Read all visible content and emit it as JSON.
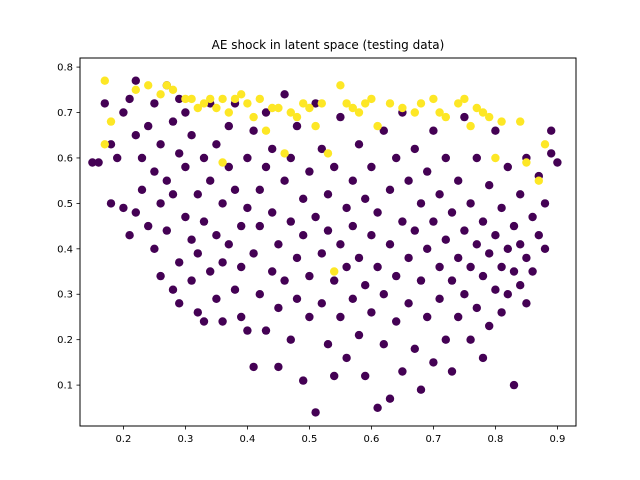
{
  "chart_data": {
    "type": "scatter",
    "title": "AE shock in latent space (testing data)",
    "xlabel": "",
    "ylabel": "",
    "xlim": [
      0.13,
      0.93
    ],
    "ylim": [
      0.01,
      0.82
    ],
    "xticks": [
      0.2,
      0.3,
      0.4,
      0.5,
      0.6,
      0.7,
      0.8,
      0.9
    ],
    "yticks": [
      0.1,
      0.2,
      0.3,
      0.4,
      0.5,
      0.6,
      0.7,
      0.8
    ],
    "grid": false,
    "legend": "none",
    "colors": {
      "class_0": "#440154",
      "class_1": "#fde725",
      "axes": "#000000"
    },
    "series": [
      {
        "class": 0,
        "points": [
          [
            0.15,
            0.59
          ],
          [
            0.16,
            0.59
          ],
          [
            0.17,
            0.72
          ],
          [
            0.18,
            0.63
          ],
          [
            0.18,
            0.5
          ],
          [
            0.19,
            0.6
          ],
          [
            0.2,
            0.49
          ],
          [
            0.2,
            0.7
          ],
          [
            0.21,
            0.73
          ],
          [
            0.21,
            0.43
          ],
          [
            0.22,
            0.65
          ],
          [
            0.22,
            0.48
          ],
          [
            0.22,
            0.77
          ],
          [
            0.23,
            0.6
          ],
          [
            0.23,
            0.53
          ],
          [
            0.24,
            0.67
          ],
          [
            0.24,
            0.45
          ],
          [
            0.25,
            0.72
          ],
          [
            0.25,
            0.57
          ],
          [
            0.25,
            0.4
          ],
          [
            0.26,
            0.34
          ],
          [
            0.26,
            0.63
          ],
          [
            0.26,
            0.5
          ],
          [
            0.27,
            0.76
          ],
          [
            0.27,
            0.55
          ],
          [
            0.27,
            0.44
          ],
          [
            0.28,
            0.31
          ],
          [
            0.28,
            0.68
          ],
          [
            0.28,
            0.52
          ],
          [
            0.29,
            0.37
          ],
          [
            0.29,
            0.61
          ],
          [
            0.29,
            0.28
          ],
          [
            0.3,
            0.47
          ],
          [
            0.3,
            0.58
          ],
          [
            0.3,
            0.7
          ],
          [
            0.31,
            0.42
          ],
          [
            0.31,
            0.33
          ],
          [
            0.31,
            0.65
          ],
          [
            0.32,
            0.52
          ],
          [
            0.32,
            0.26
          ],
          [
            0.32,
            0.39
          ],
          [
            0.33,
            0.24
          ],
          [
            0.33,
            0.6
          ],
          [
            0.33,
            0.46
          ],
          [
            0.34,
            0.35
          ],
          [
            0.34,
            0.72
          ],
          [
            0.34,
            0.55
          ],
          [
            0.35,
            0.29
          ],
          [
            0.35,
            0.43
          ],
          [
            0.35,
            0.63
          ],
          [
            0.36,
            0.5
          ],
          [
            0.36,
            0.37
          ],
          [
            0.36,
            0.24
          ],
          [
            0.37,
            0.58
          ],
          [
            0.37,
            0.67
          ],
          [
            0.37,
            0.41
          ],
          [
            0.38,
            0.31
          ],
          [
            0.38,
            0.53
          ],
          [
            0.38,
            0.72
          ],
          [
            0.39,
            0.45
          ],
          [
            0.39,
            0.25
          ],
          [
            0.39,
            0.36
          ],
          [
            0.4,
            0.6
          ],
          [
            0.4,
            0.49
          ],
          [
            0.4,
            0.22
          ],
          [
            0.41,
            0.14
          ],
          [
            0.41,
            0.39
          ],
          [
            0.41,
            0.66
          ],
          [
            0.42,
            0.53
          ],
          [
            0.42,
            0.3
          ],
          [
            0.42,
            0.45
          ],
          [
            0.43,
            0.58
          ],
          [
            0.43,
            0.22
          ],
          [
            0.43,
            0.7
          ],
          [
            0.44,
            0.35
          ],
          [
            0.44,
            0.48
          ],
          [
            0.44,
            0.62
          ],
          [
            0.45,
            0.27
          ],
          [
            0.45,
            0.14
          ],
          [
            0.45,
            0.41
          ],
          [
            0.46,
            0.55
          ],
          [
            0.46,
            0.33
          ],
          [
            0.46,
            0.74
          ],
          [
            0.47,
            0.46
          ],
          [
            0.47,
            0.2
          ],
          [
            0.47,
            0.6
          ],
          [
            0.48,
            0.38
          ],
          [
            0.48,
            0.29
          ],
          [
            0.48,
            0.67
          ],
          [
            0.49,
            0.51
          ],
          [
            0.49,
            0.11
          ],
          [
            0.49,
            0.43
          ],
          [
            0.5,
            0.25
          ],
          [
            0.5,
            0.57
          ],
          [
            0.5,
            0.34
          ],
          [
            0.51,
            0.04
          ],
          [
            0.51,
            0.47
          ],
          [
            0.51,
            0.72
          ],
          [
            0.52,
            0.39
          ],
          [
            0.52,
            0.28
          ],
          [
            0.52,
            0.62
          ],
          [
            0.53,
            0.52
          ],
          [
            0.53,
            0.19
          ],
          [
            0.53,
            0.44
          ],
          [
            0.54,
            0.33
          ],
          [
            0.54,
            0.12
          ],
          [
            0.54,
            0.58
          ],
          [
            0.55,
            0.41
          ],
          [
            0.55,
            0.25
          ],
          [
            0.55,
            0.69
          ],
          [
            0.56,
            0.49
          ],
          [
            0.56,
            0.36
          ],
          [
            0.56,
            0.16
          ],
          [
            0.57,
            0.55
          ],
          [
            0.57,
            0.29
          ],
          [
            0.57,
            0.45
          ],
          [
            0.58,
            0.38
          ],
          [
            0.58,
            0.21
          ],
          [
            0.58,
            0.63
          ],
          [
            0.59,
            0.51
          ],
          [
            0.59,
            0.32
          ],
          [
            0.59,
            0.12
          ],
          [
            0.6,
            0.43
          ],
          [
            0.6,
            0.58
          ],
          [
            0.6,
            0.26
          ],
          [
            0.61,
            0.05
          ],
          [
            0.61,
            0.48
          ],
          [
            0.61,
            0.36
          ],
          [
            0.62,
            0.66
          ],
          [
            0.62,
            0.3
          ],
          [
            0.62,
            0.19
          ],
          [
            0.63,
            0.53
          ],
          [
            0.63,
            0.41
          ],
          [
            0.63,
            0.07
          ],
          [
            0.64,
            0.6
          ],
          [
            0.64,
            0.34
          ],
          [
            0.64,
            0.24
          ],
          [
            0.65,
            0.46
          ],
          [
            0.65,
            0.13
          ],
          [
            0.65,
            0.7
          ],
          [
            0.66,
            0.38
          ],
          [
            0.66,
            0.55
          ],
          [
            0.66,
            0.28
          ],
          [
            0.67,
            0.44
          ],
          [
            0.67,
            0.18
          ],
          [
            0.67,
            0.62
          ],
          [
            0.68,
            0.33
          ],
          [
            0.68,
            0.5
          ],
          [
            0.68,
            0.09
          ],
          [
            0.69,
            0.4
          ],
          [
            0.69,
            0.25
          ],
          [
            0.69,
            0.57
          ],
          [
            0.7,
            0.46
          ],
          [
            0.7,
            0.15
          ],
          [
            0.7,
            0.66
          ],
          [
            0.71,
            0.36
          ],
          [
            0.71,
            0.29
          ],
          [
            0.71,
            0.52
          ],
          [
            0.72,
            0.42
          ],
          [
            0.72,
            0.2
          ],
          [
            0.72,
            0.6
          ],
          [
            0.73,
            0.33
          ],
          [
            0.73,
            0.48
          ],
          [
            0.73,
            0.13
          ],
          [
            0.74,
            0.38
          ],
          [
            0.74,
            0.25
          ],
          [
            0.74,
            0.55
          ],
          [
            0.75,
            0.44
          ],
          [
            0.75,
            0.3
          ],
          [
            0.75,
            0.69
          ],
          [
            0.76,
            0.36
          ],
          [
            0.76,
            0.2
          ],
          [
            0.76,
            0.5
          ],
          [
            0.77,
            0.41
          ],
          [
            0.77,
            0.27
          ],
          [
            0.77,
            0.6
          ],
          [
            0.78,
            0.34
          ],
          [
            0.78,
            0.46
          ],
          [
            0.78,
            0.16
          ],
          [
            0.79,
            0.39
          ],
          [
            0.79,
            0.23
          ],
          [
            0.79,
            0.54
          ],
          [
            0.8,
            0.31
          ],
          [
            0.8,
            0.43
          ],
          [
            0.8,
            0.66
          ],
          [
            0.81,
            0.36
          ],
          [
            0.81,
            0.26
          ],
          [
            0.81,
            0.49
          ],
          [
            0.82,
            0.4
          ],
          [
            0.82,
            0.3
          ],
          [
            0.82,
            0.58
          ],
          [
            0.83,
            0.35
          ],
          [
            0.83,
            0.1
          ],
          [
            0.83,
            0.45
          ],
          [
            0.84,
            0.32
          ],
          [
            0.84,
            0.52
          ],
          [
            0.84,
            0.41
          ],
          [
            0.85,
            0.38
          ],
          [
            0.85,
            0.6
          ],
          [
            0.85,
            0.28
          ],
          [
            0.86,
            0.47
          ],
          [
            0.86,
            0.35
          ],
          [
            0.87,
            0.43
          ],
          [
            0.87,
            0.56
          ],
          [
            0.88,
            0.4
          ],
          [
            0.88,
            0.5
          ],
          [
            0.89,
            0.61
          ],
          [
            0.89,
            0.66
          ],
          [
            0.9,
            0.59
          ],
          [
            0.29,
            0.73
          ]
        ]
      },
      {
        "class": 1,
        "points": [
          [
            0.17,
            0.77
          ],
          [
            0.17,
            0.63
          ],
          [
            0.18,
            0.68
          ],
          [
            0.22,
            0.75
          ],
          [
            0.24,
            0.76
          ],
          [
            0.26,
            0.74
          ],
          [
            0.27,
            0.76
          ],
          [
            0.28,
            0.75
          ],
          [
            0.3,
            0.73
          ],
          [
            0.31,
            0.73
          ],
          [
            0.32,
            0.71
          ],
          [
            0.33,
            0.72
          ],
          [
            0.34,
            0.73
          ],
          [
            0.35,
            0.71
          ],
          [
            0.36,
            0.73
          ],
          [
            0.36,
            0.59
          ],
          [
            0.37,
            0.7
          ],
          [
            0.38,
            0.73
          ],
          [
            0.39,
            0.74
          ],
          [
            0.4,
            0.72
          ],
          [
            0.41,
            0.69
          ],
          [
            0.42,
            0.73
          ],
          [
            0.43,
            0.66
          ],
          [
            0.44,
            0.71
          ],
          [
            0.45,
            0.71
          ],
          [
            0.46,
            0.61
          ],
          [
            0.47,
            0.7
          ],
          [
            0.49,
            0.72
          ],
          [
            0.5,
            0.71
          ],
          [
            0.51,
            0.67
          ],
          [
            0.52,
            0.72
          ],
          [
            0.53,
            0.61
          ],
          [
            0.54,
            0.35
          ],
          [
            0.55,
            0.76
          ],
          [
            0.56,
            0.72
          ],
          [
            0.57,
            0.71
          ],
          [
            0.58,
            0.7
          ],
          [
            0.59,
            0.72
          ],
          [
            0.6,
            0.73
          ],
          [
            0.61,
            0.67
          ],
          [
            0.63,
            0.72
          ],
          [
            0.65,
            0.71
          ],
          [
            0.67,
            0.7
          ],
          [
            0.68,
            0.72
          ],
          [
            0.7,
            0.73
          ],
          [
            0.71,
            0.7
          ],
          [
            0.72,
            0.69
          ],
          [
            0.74,
            0.72
          ],
          [
            0.75,
            0.73
          ],
          [
            0.76,
            0.67
          ],
          [
            0.77,
            0.71
          ],
          [
            0.78,
            0.7
          ],
          [
            0.79,
            0.69
          ],
          [
            0.8,
            0.6
          ],
          [
            0.81,
            0.68
          ],
          [
            0.84,
            0.68
          ],
          [
            0.85,
            0.59
          ],
          [
            0.87,
            0.55
          ],
          [
            0.88,
            0.63
          ],
          [
            0.48,
            0.69
          ]
        ]
      }
    ]
  }
}
